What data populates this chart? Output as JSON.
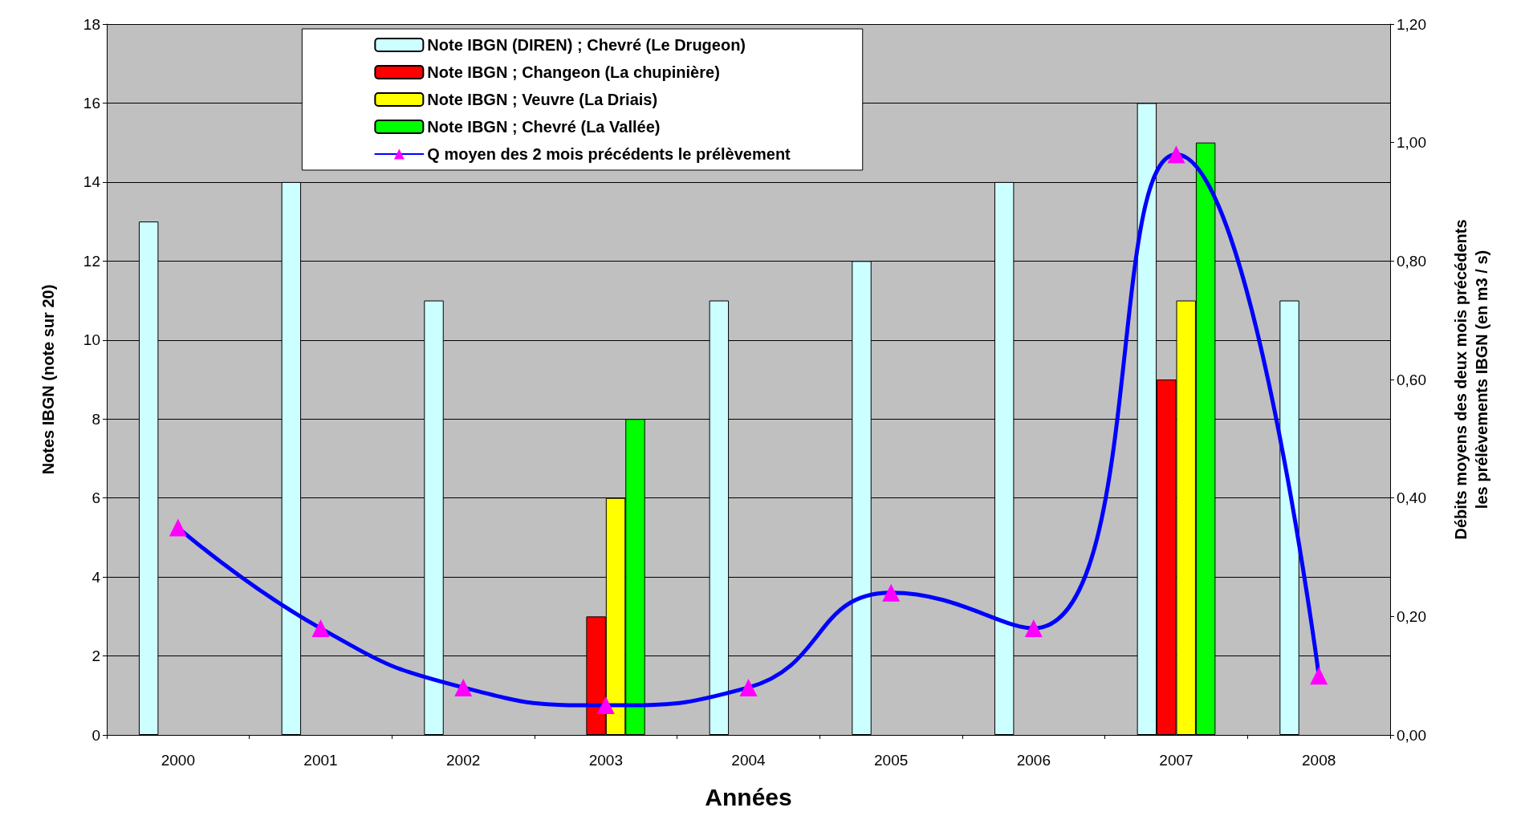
{
  "chart_data": {
    "type": "bar",
    "xlabel": "Années",
    "ylabel": "Notes IBGN (note sur 20)",
    "y2label": "Débits moyens des deux mois précédents les prélèvements IBGN (en m3 / s)",
    "categories": [
      "2000",
      "2001",
      "2002",
      "2003",
      "2004",
      "2005",
      "2006",
      "2007",
      "2008"
    ],
    "series": [
      {
        "name": "Note IBGN (DIREN) ; Chevré (Le Drugeon)",
        "color": "#ccffff",
        "values": [
          13,
          14,
          11,
          null,
          11,
          12,
          14,
          16,
          11
        ]
      },
      {
        "name": "Note IBGN ; Changeon (La chupinière)",
        "color": "#ff0000",
        "values": [
          null,
          null,
          null,
          3,
          null,
          null,
          null,
          9,
          null
        ]
      },
      {
        "name": "Note IBGN ; Veuvre (La Driais)",
        "color": "#ffff00",
        "values": [
          null,
          null,
          null,
          6,
          null,
          null,
          null,
          11,
          null
        ]
      },
      {
        "name": "Note IBGN ; Chevré (La Vallée)",
        "color": "#00ff00",
        "values": [
          null,
          null,
          null,
          8,
          null,
          null,
          null,
          15,
          null
        ]
      },
      {
        "name": "Q moyen des 2 mois précédents le prélèvement",
        "type": "line",
        "axis": "y2",
        "color": "#0000ff",
        "marker": "triangle",
        "values": [
          0.35,
          0.18,
          0.08,
          0.05,
          0.08,
          0.24,
          0.18,
          0.98,
          0.1
        ]
      }
    ],
    "ylim": [
      0,
      18
    ],
    "yticks": [
      0,
      2,
      4,
      6,
      8,
      10,
      12,
      14,
      16,
      18
    ],
    "y2lim": [
      0,
      1.2
    ],
    "y2ticks": [
      {
        "value": 0,
        "label": "0,00"
      },
      {
        "value": 0.2,
        "label": "0,20"
      },
      {
        "value": 0.4,
        "label": "0,40"
      },
      {
        "value": 0.6,
        "label": "0,60"
      },
      {
        "value": 0.8,
        "label": "0,80"
      },
      {
        "value": 1.0,
        "label": "1,00"
      },
      {
        "value": 1.2,
        "label": "1,20"
      }
    ],
    "grid": "y",
    "legend": "top"
  }
}
